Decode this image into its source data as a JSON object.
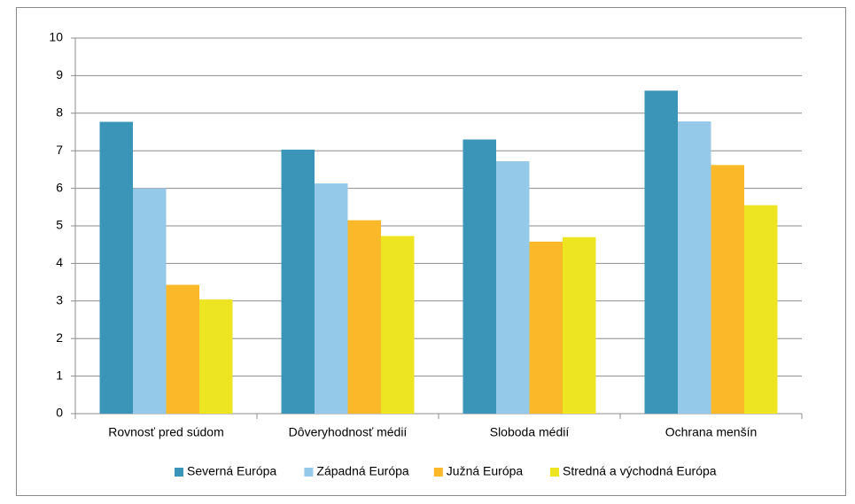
{
  "chart_data": {
    "type": "bar",
    "categories": [
      "Rovnosť pred súdom",
      "Dôveryhodnosť médií",
      "Sloboda médií",
      "Ochrana menšín"
    ],
    "series": [
      {
        "name": "Severná Európa",
        "color": "#3a95b8",
        "values": [
          7.77,
          7.03,
          7.3,
          8.6
        ]
      },
      {
        "name": "Západná Európa",
        "color": "#95c9ea",
        "values": [
          6.0,
          6.13,
          6.72,
          7.78
        ]
      },
      {
        "name": "Južná Európa",
        "color": "#fbb829",
        "values": [
          3.43,
          5.15,
          4.58,
          6.62
        ]
      },
      {
        "name": "Stredná a východná Európa",
        "color": "#ede522",
        "values": [
          3.04,
          4.73,
          4.7,
          5.55
        ]
      }
    ],
    "ylim": [
      0,
      10
    ],
    "yticks": [
      0,
      1,
      2,
      3,
      4,
      5,
      6,
      7,
      8,
      9,
      10
    ],
    "grid": true,
    "legend": "bottom"
  }
}
